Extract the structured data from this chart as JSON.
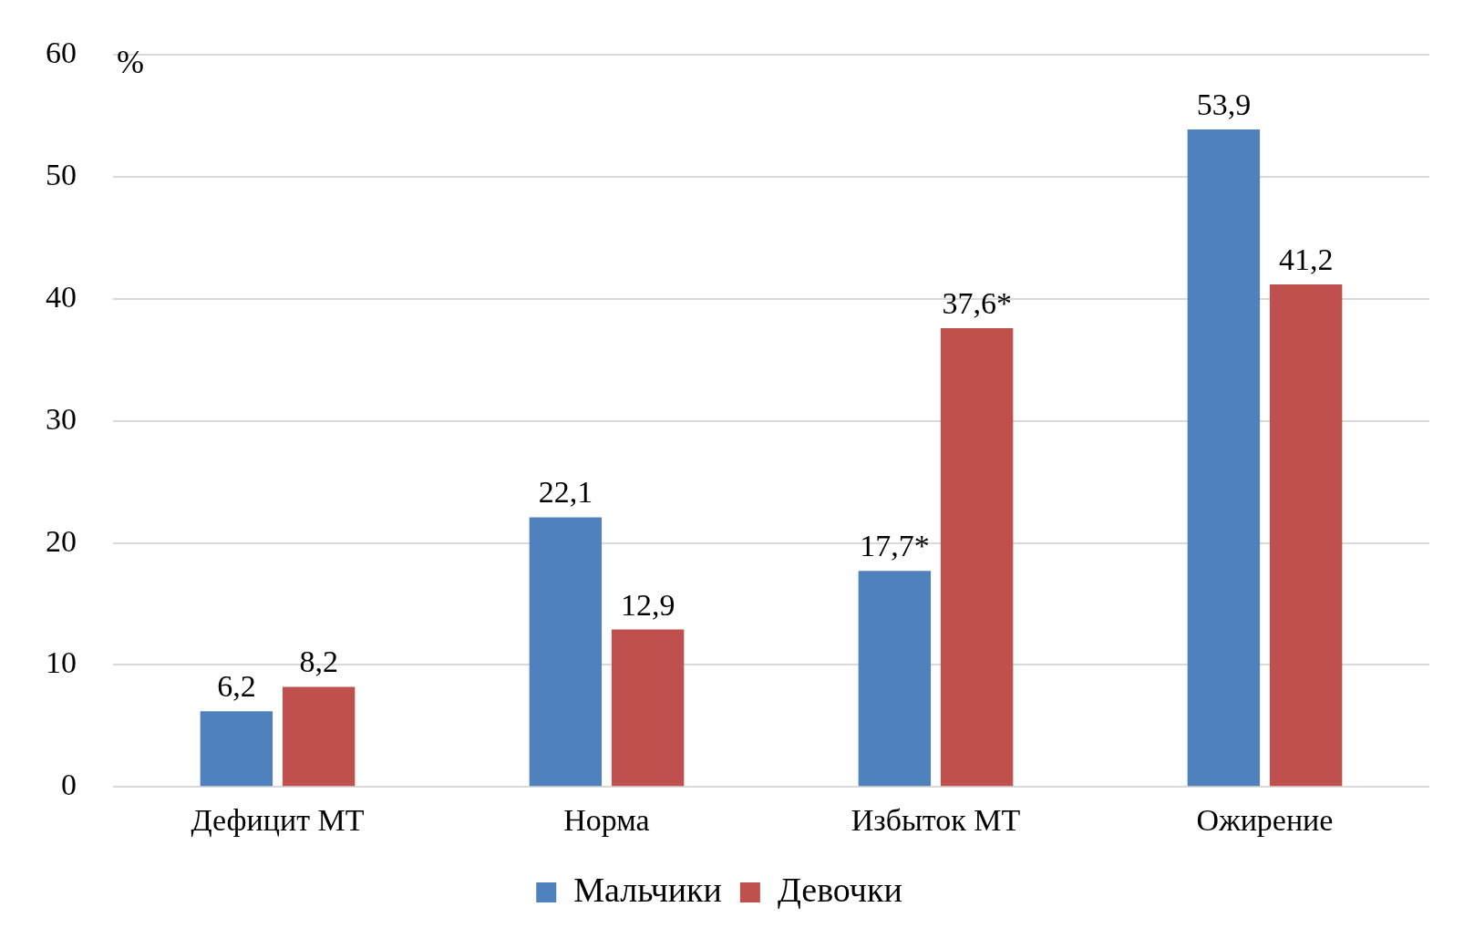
{
  "chart_data": {
    "type": "bar",
    "ylabel": "%",
    "categories": [
      "Дефицит МТ",
      "Норма",
      "Избыток МТ",
      "Ожирение"
    ],
    "series": [
      {
        "name": "Мальчики",
        "color": "#4f81bd",
        "values": [
          6.2,
          22.1,
          17.7,
          53.9
        ],
        "value_labels": [
          "6,2",
          "22,1",
          "17,7*",
          "53,9"
        ]
      },
      {
        "name": "Девочки",
        "color": "#c0504d",
        "values": [
          8.2,
          12.9,
          37.6,
          41.2
        ],
        "value_labels": [
          "8,2",
          "12,9",
          "37,6*",
          "41,2"
        ]
      }
    ],
    "ylim": [
      0,
      60
    ],
    "yticks": [
      0,
      10,
      20,
      30,
      40,
      50,
      60
    ],
    "grid": "y",
    "legend": "bottom"
  }
}
